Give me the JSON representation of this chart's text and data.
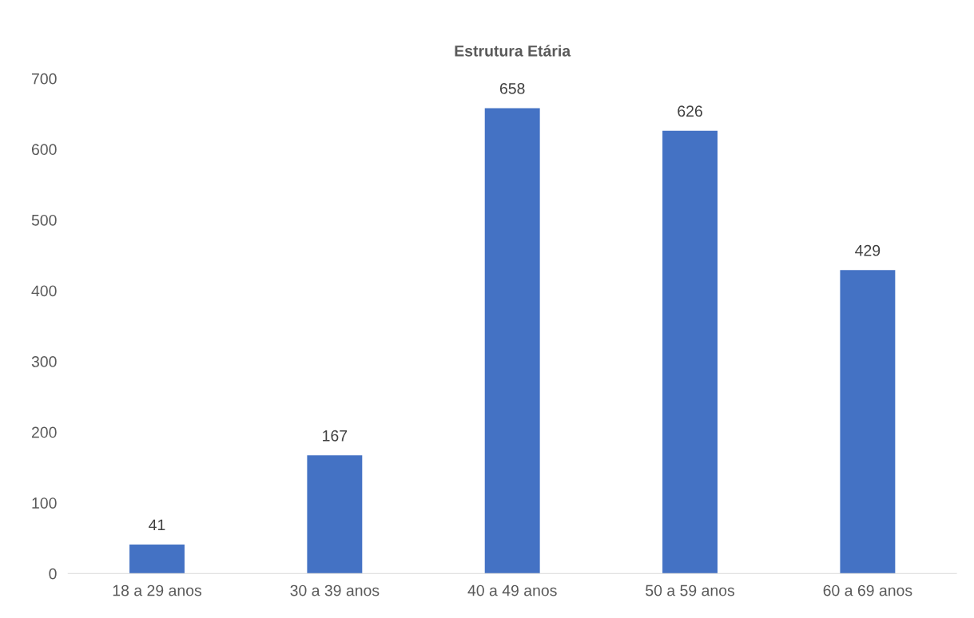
{
  "chart_data": {
    "type": "bar",
    "title": "Estrutura Etária",
    "categories": [
      "18 a 29 anos",
      "30 a 39 anos",
      "40 a 49 anos",
      "50 a 59 anos",
      "60 a 69 anos"
    ],
    "values": [
      41,
      167,
      658,
      626,
      429
    ],
    "color": "#4472c4",
    "ylim": [
      0,
      700
    ],
    "yticks": [
      0,
      100,
      200,
      300,
      400,
      500,
      600,
      700
    ],
    "data_labels": true,
    "grid": false
  }
}
